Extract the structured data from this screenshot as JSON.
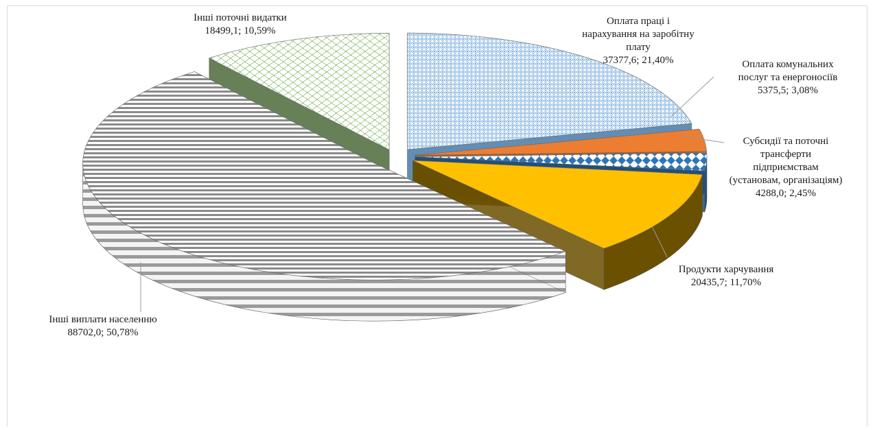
{
  "chart_data": {
    "type": "pie",
    "title": "",
    "slices": [
      {
        "name_lines": [
          "Оплата праці  і",
          "нарахування  на заробітну",
          "плату"
        ],
        "value_text": "37377,6; 21,40%",
        "value": 37377.6,
        "percent": 21.4,
        "fill": "#9dc3e6",
        "pattern": "diamond-grid"
      },
      {
        "name_lines": [
          "Оплата комунальних",
          "послуг та енергоносіїв"
        ],
        "value_text": "5375,5; 3,08%",
        "value": 5375.5,
        "percent": 3.08,
        "fill": "#ed7d31",
        "pattern": "solid"
      },
      {
        "name_lines": [
          "Субсидії та поточні",
          "трансферти",
          "підприємствам",
          "(установам, організаціям)"
        ],
        "value_text": "4288,0; 2,45%",
        "value": 4288.0,
        "percent": 2.45,
        "fill": "#2e75b6",
        "pattern": "checker"
      },
      {
        "name_lines": [
          "Продукти харчування"
        ],
        "value_text": "20435,7; 11,70%",
        "value": 20435.7,
        "percent": 11.7,
        "fill": "#ffc000",
        "pattern": "solid"
      },
      {
        "name_lines": [
          "Інші виплати  населенню"
        ],
        "value_text": "88702,0; 50,78%",
        "value": 88702.0,
        "percent": 50.78,
        "fill": "#7f7f7f",
        "pattern": "horizontal-stripes"
      },
      {
        "name_lines": [
          "Інші поточні видатки"
        ],
        "value_text": "18499,1; 10,59%",
        "value": 18499.1,
        "percent": 10.59,
        "fill": "#70ad47",
        "pattern": "brick"
      }
    ],
    "style": "3d-exploded",
    "legend": "none",
    "grid": false
  }
}
